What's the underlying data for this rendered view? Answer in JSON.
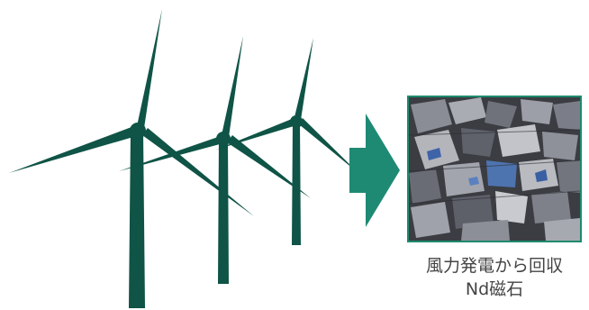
{
  "diagram": {
    "caption_line1": "風力発電から回収",
    "caption_line2": "Nd磁石",
    "colors": {
      "turbine": "#0f5446",
      "arrow": "#1f8a74",
      "frame": "#1e8a6e",
      "caption_text": "#444444"
    },
    "icons": [
      "wind-turbine-icon",
      "right-arrow-icon",
      "magnet-scrap-photo"
    ]
  }
}
